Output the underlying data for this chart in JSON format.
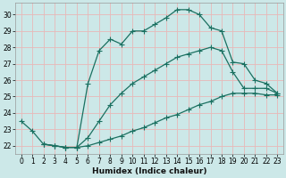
{
  "xlabel": "Humidex (Indice chaleur)",
  "bg_color": "#cce8e8",
  "grid_color": "#e8b8b8",
  "line_color": "#1a7060",
  "xlim": [
    -0.5,
    23.5
  ],
  "ylim": [
    21.5,
    30.7
  ],
  "xticks": [
    0,
    1,
    2,
    3,
    4,
    5,
    6,
    7,
    8,
    9,
    10,
    11,
    12,
    13,
    14,
    15,
    16,
    17,
    18,
    19,
    20,
    21,
    22,
    23
  ],
  "yticks": [
    22,
    23,
    24,
    25,
    26,
    27,
    28,
    29,
    30
  ],
  "line1_x": [
    0,
    1,
    2,
    3,
    4,
    5,
    6,
    7,
    8,
    9,
    10,
    11,
    12,
    13,
    14,
    15,
    16,
    17,
    18,
    19,
    20,
    21,
    22,
    23
  ],
  "line1_y": [
    23.5,
    22.9,
    22.1,
    22.0,
    21.9,
    21.9,
    25.8,
    27.8,
    28.5,
    28.2,
    29.0,
    29.0,
    29.4,
    29.8,
    30.3,
    30.3,
    30.0,
    29.2,
    29.0,
    27.1,
    27.0,
    26.0,
    25.8,
    25.2
  ],
  "line2_x": [
    2,
    3,
    4,
    5,
    6,
    7,
    8,
    9,
    10,
    11,
    12,
    13,
    14,
    15,
    16,
    17,
    18,
    19,
    20,
    21,
    22,
    23
  ],
  "line2_y": [
    22.1,
    22.0,
    21.9,
    21.9,
    22.5,
    23.5,
    24.5,
    25.2,
    25.8,
    26.2,
    26.6,
    27.0,
    27.4,
    27.6,
    27.8,
    28.0,
    27.8,
    26.5,
    25.5,
    25.5,
    25.5,
    25.2
  ],
  "line3_x": [
    2,
    3,
    4,
    5,
    6,
    7,
    8,
    9,
    10,
    11,
    12,
    13,
    14,
    15,
    16,
    17,
    18,
    19,
    20,
    21,
    22,
    23
  ],
  "line3_y": [
    22.1,
    22.0,
    21.9,
    21.9,
    22.0,
    22.2,
    22.4,
    22.6,
    22.9,
    23.1,
    23.4,
    23.7,
    23.9,
    24.2,
    24.5,
    24.7,
    25.0,
    25.2,
    25.2,
    25.2,
    25.1,
    25.1
  ]
}
